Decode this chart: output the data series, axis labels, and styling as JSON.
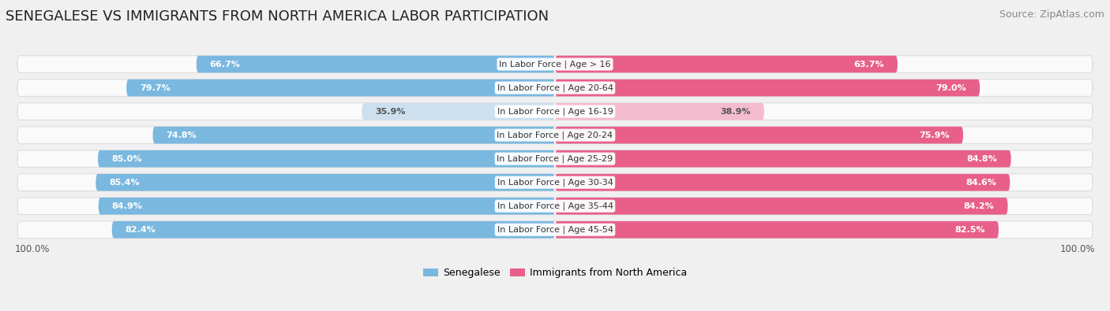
{
  "title": "SENEGALESE VS IMMIGRANTS FROM NORTH AMERICA LABOR PARTICIPATION",
  "source": "Source: ZipAtlas.com",
  "categories": [
    "In Labor Force | Age > 16",
    "In Labor Force | Age 20-64",
    "In Labor Force | Age 16-19",
    "In Labor Force | Age 20-24",
    "In Labor Force | Age 25-29",
    "In Labor Force | Age 30-34",
    "In Labor Force | Age 35-44",
    "In Labor Force | Age 45-54"
  ],
  "senegalese_values": [
    66.7,
    79.7,
    35.9,
    74.8,
    85.0,
    85.4,
    84.9,
    82.4
  ],
  "immigrant_values": [
    63.7,
    79.0,
    38.9,
    75.9,
    84.8,
    84.6,
    84.2,
    82.5
  ],
  "senegalese_color_full": "#7ab8e0",
  "senegalese_color_light": "#cce0f0",
  "immigrant_color_full": "#e8608a",
  "immigrant_color_light": "#f5bcd0",
  "bg_color": "#f0f0f0",
  "bar_bg_color": "#fafafa",
  "bar_border_color": "#dddddd",
  "legend_senegalese": "Senegalese",
  "legend_immigrant": "Immigrants from North America",
  "axis_label_left": "100.0%",
  "axis_label_right": "100.0%",
  "max_val": 100.0,
  "light_threshold": 50.0,
  "title_fontsize": 13,
  "source_fontsize": 9,
  "value_fontsize": 8,
  "cat_fontsize": 8,
  "legend_fontsize": 9,
  "axis_fontsize": 8.5
}
